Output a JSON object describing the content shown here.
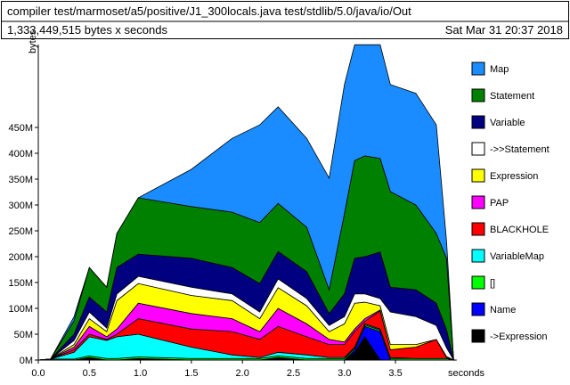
{
  "chart_data": {
    "type": "stacked-area",
    "title": "compiler test/marmoset/a5/positive/J1_300locals.java test/stdlib/5.0/java/io/Out",
    "subtitle": "1,333,449,515 bytes x seconds",
    "date": "Sat Mar 31 20:37 2018",
    "x_label": "seconds",
    "y_label": "bytes",
    "x": [
      0,
      0.12,
      0.35,
      0.5,
      0.67,
      0.77,
      0.98,
      1.5,
      1.9,
      2.17,
      2.35,
      2.63,
      2.85,
      3.0,
      3.1,
      3.2,
      3.35,
      3.45,
      3.7,
      3.9,
      4.0,
      4.07
    ],
    "xlim": [
      0,
      4.1
    ],
    "xticks": [
      {
        "value": 0,
        "label": "0.0"
      },
      0.5,
      {
        "value": 1,
        "label": "1.0"
      },
      1.5,
      {
        "value": 2,
        "label": "2.0"
      },
      2.5,
      {
        "value": 3,
        "label": "3.0"
      },
      3.5
    ],
    "ylim": [
      0,
      620
    ],
    "yticks": [
      {
        "value": 0,
        "label": "0M"
      },
      {
        "value": 50,
        "label": "50M"
      },
      {
        "value": 100,
        "label": "100M"
      },
      {
        "value": 150,
        "label": "150M"
      },
      {
        "value": 200,
        "label": "200M"
      },
      {
        "value": 250,
        "label": "250M"
      },
      {
        "value": 300,
        "label": "300M"
      },
      {
        "value": 350,
        "label": "350M"
      },
      {
        "value": 400,
        "label": "400M"
      },
      {
        "value": 450,
        "label": "450M"
      }
    ],
    "series": [
      {
        "name": "Map",
        "color": "#1a8cff",
        "values": [
          0,
          0,
          8,
          0,
          0,
          0,
          0,
          72,
          143,
          189,
          187,
          172,
          216,
          250,
          224,
          215,
          220,
          207,
          216,
          210,
          34,
          0
        ]
      },
      {
        "name": "Statement",
        "color": "#008000",
        "values": [
          0,
          0,
          26,
          57,
          48,
          66,
          109,
          100,
          107,
          118,
          93,
          86,
          46,
          155,
          189,
          195,
          181,
          185,
          164,
          135,
          138,
          0
        ]
      },
      {
        "name": "Variable",
        "color": "#000080",
        "values": [
          0,
          0,
          12,
          29,
          31,
          51,
          43,
          56,
          51,
          55,
          53,
          52,
          23,
          44,
          69,
          72,
          90,
          48,
          52,
          43,
          35,
          0
        ]
      },
      {
        "name": "->>Statement",
        "color": "#ffffff",
        "values": [
          0,
          0,
          8,
          13,
          7,
          13,
          14,
          16,
          13,
          13,
          17,
          14,
          12,
          14,
          18,
          16,
          14,
          63,
          54,
          27,
          17,
          0
        ]
      },
      {
        "name": "Expression",
        "color": "#ffff00",
        "values": [
          0,
          0,
          5,
          15,
          10,
          55,
          38,
          35,
          35,
          25,
          40,
          35,
          15,
          35,
          50,
          32,
          8,
          10,
          5,
          0,
          2,
          0
        ]
      },
      {
        "name": "PAP",
        "color": "#ff00ff",
        "values": [
          0,
          0,
          5,
          15,
          5,
          10,
          30,
          30,
          25,
          15,
          35,
          25,
          10,
          5,
          5,
          5,
          2,
          0,
          0,
          0,
          0,
          0
        ]
      },
      {
        "name": "BLACKHOLE",
        "color": "#ff0000",
        "values": [
          0,
          0,
          5,
          5,
          2,
          5,
          30,
          35,
          45,
          35,
          50,
          35,
          25,
          25,
          30,
          5,
          35,
          15,
          22,
          37,
          2,
          0
        ]
      },
      {
        "name": "VariableMap",
        "color": "#00ffff",
        "values": [
          0,
          0,
          13,
          37,
          35,
          42,
          44,
          22,
          7,
          2,
          7,
          7,
          2,
          2,
          2,
          2,
          2,
          2,
          0,
          0,
          0,
          0
        ]
      },
      {
        "name": "[]",
        "color": "#00ff00",
        "values": [
          0,
          2,
          2,
          3,
          3,
          3,
          3,
          3,
          3,
          3,
          3,
          3,
          3,
          3,
          3,
          3,
          3,
          3,
          3,
          3,
          3,
          0
        ]
      },
      {
        "name": "Name",
        "color": "#0000ff",
        "values": [
          0,
          0,
          0,
          0,
          0,
          0,
          0,
          0,
          0,
          0,
          0,
          0,
          0,
          0,
          5,
          20,
          55,
          0,
          0,
          0,
          0,
          0
        ]
      },
      {
        "name": "->Expression",
        "color": "#000000",
        "values": [
          0,
          0,
          0,
          5,
          0,
          0,
          3,
          0,
          0,
          0,
          5,
          0,
          0,
          0,
          15,
          45,
          0,
          0,
          0,
          0,
          0,
          0
        ]
      }
    ]
  }
}
